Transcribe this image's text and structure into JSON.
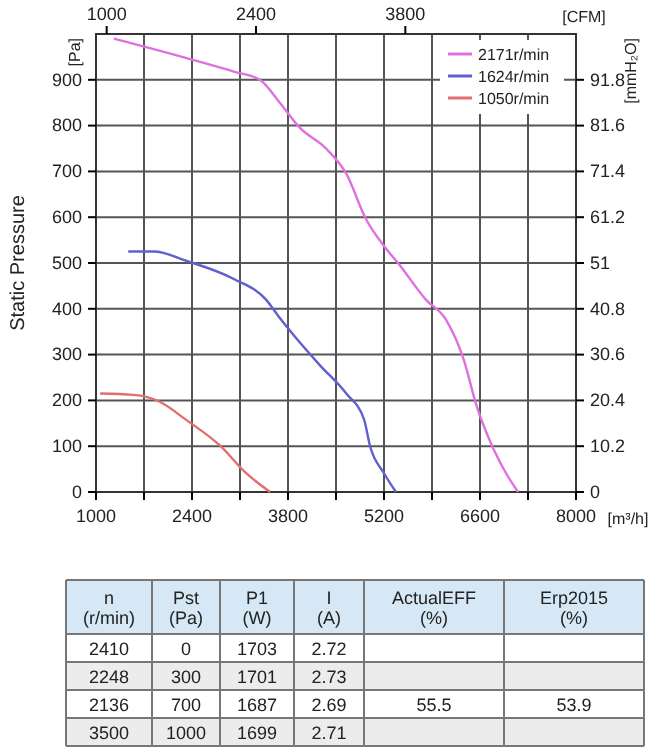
{
  "chart_data": [
    {
      "type": "line",
      "ylabel": "Static Pressure",
      "xlabel": "[m³/h]",
      "x2label": "[CFM]",
      "y2label": "[mmH₂O]",
      "annotations": [
        "[Pa]"
      ],
      "xlim": [
        1000,
        8000
      ],
      "xticks": [
        1000,
        {
          "value": 1700,
          "label": null
        },
        2400,
        {
          "value": 3100,
          "label": null
        },
        3800,
        {
          "value": 4500,
          "label": null
        },
        5200,
        {
          "value": 5900,
          "label": null
        },
        6600,
        {
          "value": 7300,
          "label": null
        },
        8000
      ],
      "x2lim": [
        900,
        5400
      ],
      "x2ticks": [
        1000,
        2400,
        3800
      ],
      "ylim": [
        0,
        1000
      ],
      "yticks": [
        0,
        100,
        200,
        300,
        400,
        500,
        600,
        700,
        800,
        900
      ],
      "y2lim": [
        0,
        102
      ],
      "y2ticks": [
        0,
        10.2,
        20.4,
        30.6,
        40.8,
        51,
        61.2,
        71.4,
        81.6,
        91.8
      ],
      "grid": true,
      "legend": "top right",
      "marker": "none",
      "line_style": "solid",
      "series": [
        {
          "name": "2171r/min",
          "color": "#e070e0",
          "x": [
            1260,
            2310,
            3010,
            3390,
            3680,
            3975,
            4355,
            4650,
            4940,
            5200,
            5430,
            5810,
            6105,
            6365,
            6540,
            6800,
            6980,
            7155
          ],
          "values": [
            990,
            948,
            918,
            900,
            850,
            795,
            750,
            695,
            595,
            537,
            495,
            420,
            376,
            288,
            193,
            93,
            41,
            0
          ]
        },
        {
          "name": "1624r/min",
          "color": "#6060d0",
          "x": [
            1470,
            1850,
            2310,
            3010,
            3480,
            3655,
            3890,
            4270,
            4650,
            4910,
            4995,
            5200,
            5375
          ],
          "values": [
            525,
            525,
            505,
            465,
            420,
            385,
            341,
            276,
            215,
            158,
            101,
            41,
            0
          ]
        },
        {
          "name": "1050r/min",
          "color": "#e07070",
          "x": [
            1060,
            1550,
            1930,
            2310,
            2810,
            3190,
            3540
          ],
          "values": [
            215,
            212,
            197,
            158,
            101,
            41,
            0
          ]
        }
      ]
    },
    {
      "type": "other",
      "annotations": [
        "n\n(r/min)",
        "Pst\n(Pa)",
        "P1\n(W)",
        "I\n(A)",
        "ActualEFF\n(%)",
        "Erp2015\n(%)",
        "2410",
        "0",
        "1703",
        "2.72",
        "2248",
        "300",
        "1701",
        "2.73",
        "2136",
        "700",
        "1687",
        "2.69",
        "3500",
        "1000",
        "1699",
        "2.71",
        "55.5",
        "53.9"
      ]
    }
  ]
}
